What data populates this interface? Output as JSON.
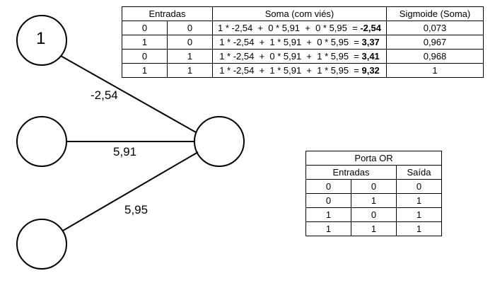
{
  "neurons": {
    "bias_value": "1",
    "weights": [
      "-2,54",
      "5,91",
      "5,95"
    ]
  },
  "main_table": {
    "headers": [
      "Entradas",
      "Soma (com viés)",
      "Sigmoide (Soma)"
    ],
    "rows": [
      {
        "x1": "0",
        "x2": "0",
        "expr": "1 * -2,54  +  0 * 5,91  +  0 * 5,95  = ",
        "sum": "-2,54",
        "sig": "0,073"
      },
      {
        "x1": "1",
        "x2": "0",
        "expr": "1 * -2,54  +  1 * 5,91  +  0 * 5,95  = ",
        "sum": "3,37",
        "sig": "0,967"
      },
      {
        "x1": "0",
        "x2": "1",
        "expr": "1 * -2,54  +  0 * 5,91  +  1 * 5,95  = ",
        "sum": "3,41",
        "sig": "0,968"
      },
      {
        "x1": "1",
        "x2": "1",
        "expr": "1 * -2,54  +  1 * 5,91  +  1 * 5,95  = ",
        "sum": "9,32",
        "sig": "1"
      }
    ]
  },
  "or_table": {
    "title": "Porta OR",
    "headers": [
      "Entradas",
      "Saída"
    ],
    "rows": [
      [
        "0",
        "0",
        "0"
      ],
      [
        "0",
        "1",
        "1"
      ],
      [
        "1",
        "0",
        "1"
      ],
      [
        "1",
        "1",
        "1"
      ]
    ]
  }
}
